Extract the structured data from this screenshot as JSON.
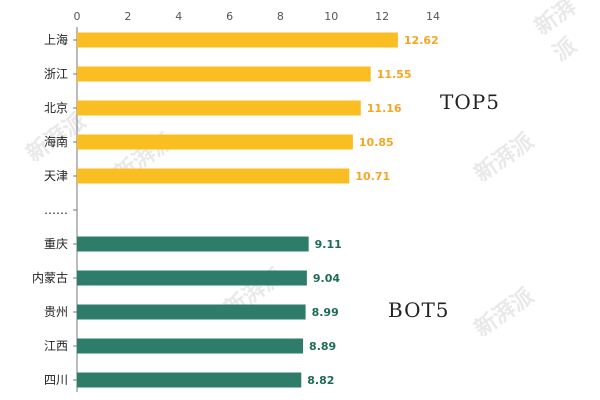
{
  "watermark": "新湃派",
  "chart_data": {
    "type": "bar",
    "orientation": "horizontal",
    "xlim": [
      0,
      14
    ],
    "xticks": [
      0,
      2,
      4,
      6,
      8,
      10,
      12,
      14
    ],
    "axis_position": "top",
    "grid": false,
    "categories": [
      "上海",
      "浙江",
      "北京",
      "海南",
      "天津",
      "……",
      "重庆",
      "内蒙古",
      "贵州",
      "江西",
      "四川"
    ],
    "values": [
      12.62,
      11.55,
      11.16,
      10.85,
      10.71,
      null,
      9.11,
      9.04,
      8.99,
      8.89,
      8.82
    ],
    "data_labels": [
      "12.62",
      "11.55",
      "11.16",
      "10.85",
      "10.71",
      "",
      "9.11",
      "9.04",
      "8.99",
      "8.89",
      "8.82"
    ],
    "groups": [
      {
        "name": "TOP5",
        "color": "#FBBE22",
        "label_color": "#F5A623",
        "indices": [
          0,
          1,
          2,
          3,
          4
        ]
      },
      {
        "name": "BOT5",
        "color": "#2E7D6B",
        "label_color": "#1E6B58",
        "indices": [
          6,
          7,
          8,
          9,
          10
        ]
      }
    ]
  }
}
